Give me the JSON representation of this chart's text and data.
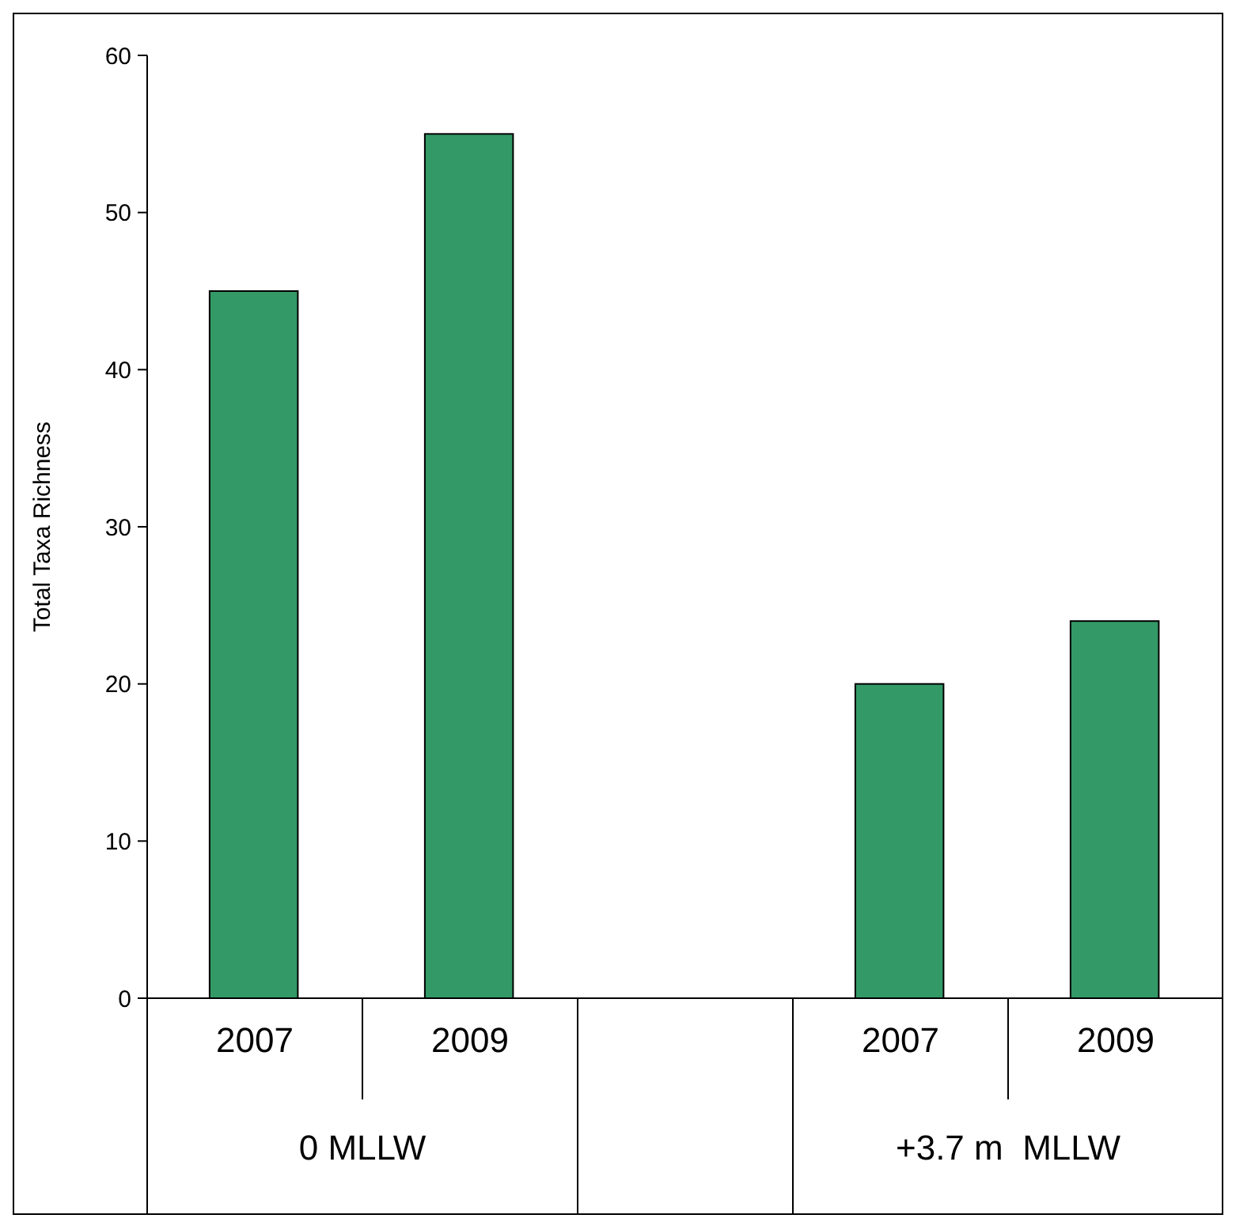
{
  "chart_data": {
    "type": "bar",
    "ylabel": "Total Taxa Richness",
    "categories": [
      "2007",
      "2009",
      null,
      "2007",
      "2009"
    ],
    "values": [
      45,
      55,
      null,
      20,
      24
    ],
    "color": "#339966",
    "ylim": [
      0,
      60
    ],
    "yticks": [
      0,
      10,
      20,
      30,
      40,
      50,
      60
    ],
    "grid": false,
    "annotations": [
      "0 MLLW",
      "+3.7 m  MLLW"
    ]
  }
}
